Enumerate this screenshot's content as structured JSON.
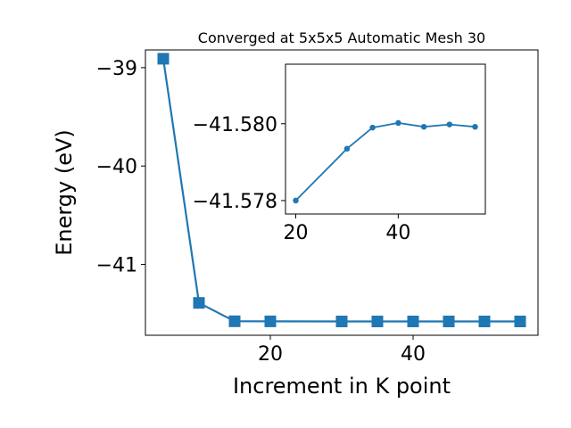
{
  "chart_data": [
    {
      "type": "line",
      "title": "Converged at 5x5x5 Automatic Mesh 30",
      "xlabel": "Increment in K point",
      "ylabel": "Energy (eV)",
      "x": [
        5,
        10,
        15,
        20,
        30,
        35,
        40,
        45,
        50,
        55
      ],
      "series": [
        {
          "values": [
            -38.91,
            -41.391,
            -41.5775,
            -41.579,
            -41.5793,
            -41.5794,
            -41.5794,
            -41.5794,
            -41.5794,
            -41.5794
          ],
          "color": "#1f77b4",
          "marker": "square"
        }
      ],
      "xlim": [
        2.5,
        57.5
      ],
      "ylim": [
        -41.72,
        -38.82
      ],
      "xticks": [
        20,
        40
      ],
      "xtick_labels": [
        "20",
        "40"
      ],
      "yticks": [
        -39,
        -40,
        -41
      ],
      "ytick_labels": [
        "−39",
        "−40",
        "−41"
      ],
      "grid": false
    },
    {
      "type": "line",
      "role": "inset",
      "x": [
        20,
        30,
        35,
        40,
        45,
        50,
        55
      ],
      "series": [
        {
          "values": [
            -41.578,
            -41.57935,
            -41.5799,
            -41.58002,
            -41.57992,
            -41.57998,
            -41.57992
          ],
          "color": "#1f77b4",
          "marker": "circle"
        }
      ],
      "xlim": [
        18,
        57
      ],
      "ylim": [
        -41.57765,
        -41.58155
      ],
      "xticks": [
        20,
        40
      ],
      "xtick_labels": [
        "20",
        "40"
      ],
      "yticks": [
        -41.58,
        -41.578
      ],
      "ytick_labels": [
        "−41.580",
        "−41.578"
      ],
      "grid": false
    }
  ]
}
